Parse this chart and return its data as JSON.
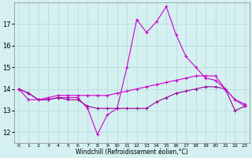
{
  "x": [
    0,
    1,
    2,
    3,
    4,
    5,
    6,
    7,
    8,
    9,
    10,
    11,
    12,
    13,
    14,
    15,
    16,
    17,
    18,
    19,
    20,
    21,
    22,
    23
  ],
  "line1": [
    14.0,
    13.8,
    13.5,
    13.5,
    13.6,
    13.6,
    13.6,
    13.1,
    11.9,
    12.8,
    13.1,
    15.0,
    17.2,
    16.6,
    17.1,
    17.8,
    16.5,
    15.5,
    15.0,
    14.5,
    14.4,
    14.0,
    13.5,
    13.2
  ],
  "line2": [
    14.0,
    13.8,
    13.5,
    13.5,
    13.6,
    13.5,
    13.5,
    13.2,
    13.1,
    13.1,
    13.1,
    13.1,
    13.1,
    13.1,
    13.4,
    13.6,
    13.8,
    13.9,
    14.0,
    14.1,
    14.1,
    14.0,
    13.0,
    13.2
  ],
  "line3": [
    14.0,
    13.5,
    13.5,
    13.6,
    13.7,
    13.7,
    13.7,
    13.7,
    13.7,
    13.7,
    13.8,
    13.9,
    14.0,
    14.1,
    14.2,
    14.3,
    14.4,
    14.5,
    14.6,
    14.6,
    14.6,
    14.0,
    13.5,
    13.3
  ],
  "bg_color": "#d4f0f0",
  "grid_color": "#b8dede",
  "line1_color": "#cc00cc",
  "line2_color": "#990099",
  "line3_color": "#cc00cc",
  "xlabel": "Windchill (Refroidissement éolien,°C)",
  "ylim": [
    11.5,
    18.0
  ],
  "xlim": [
    -0.5,
    23.5
  ],
  "yticks": [
    12,
    13,
    14,
    15,
    16,
    17
  ],
  "xtick_labels": [
    "0",
    "1",
    "2",
    "3",
    "4",
    "5",
    "6",
    "7",
    "8",
    "9",
    "10",
    "11",
    "12",
    "13",
    "14",
    "15",
    "16",
    "17",
    "18",
    "19",
    "20",
    "21",
    "22",
    "23"
  ],
  "marker": "+",
  "markersize": 3,
  "linewidth": 0.8
}
